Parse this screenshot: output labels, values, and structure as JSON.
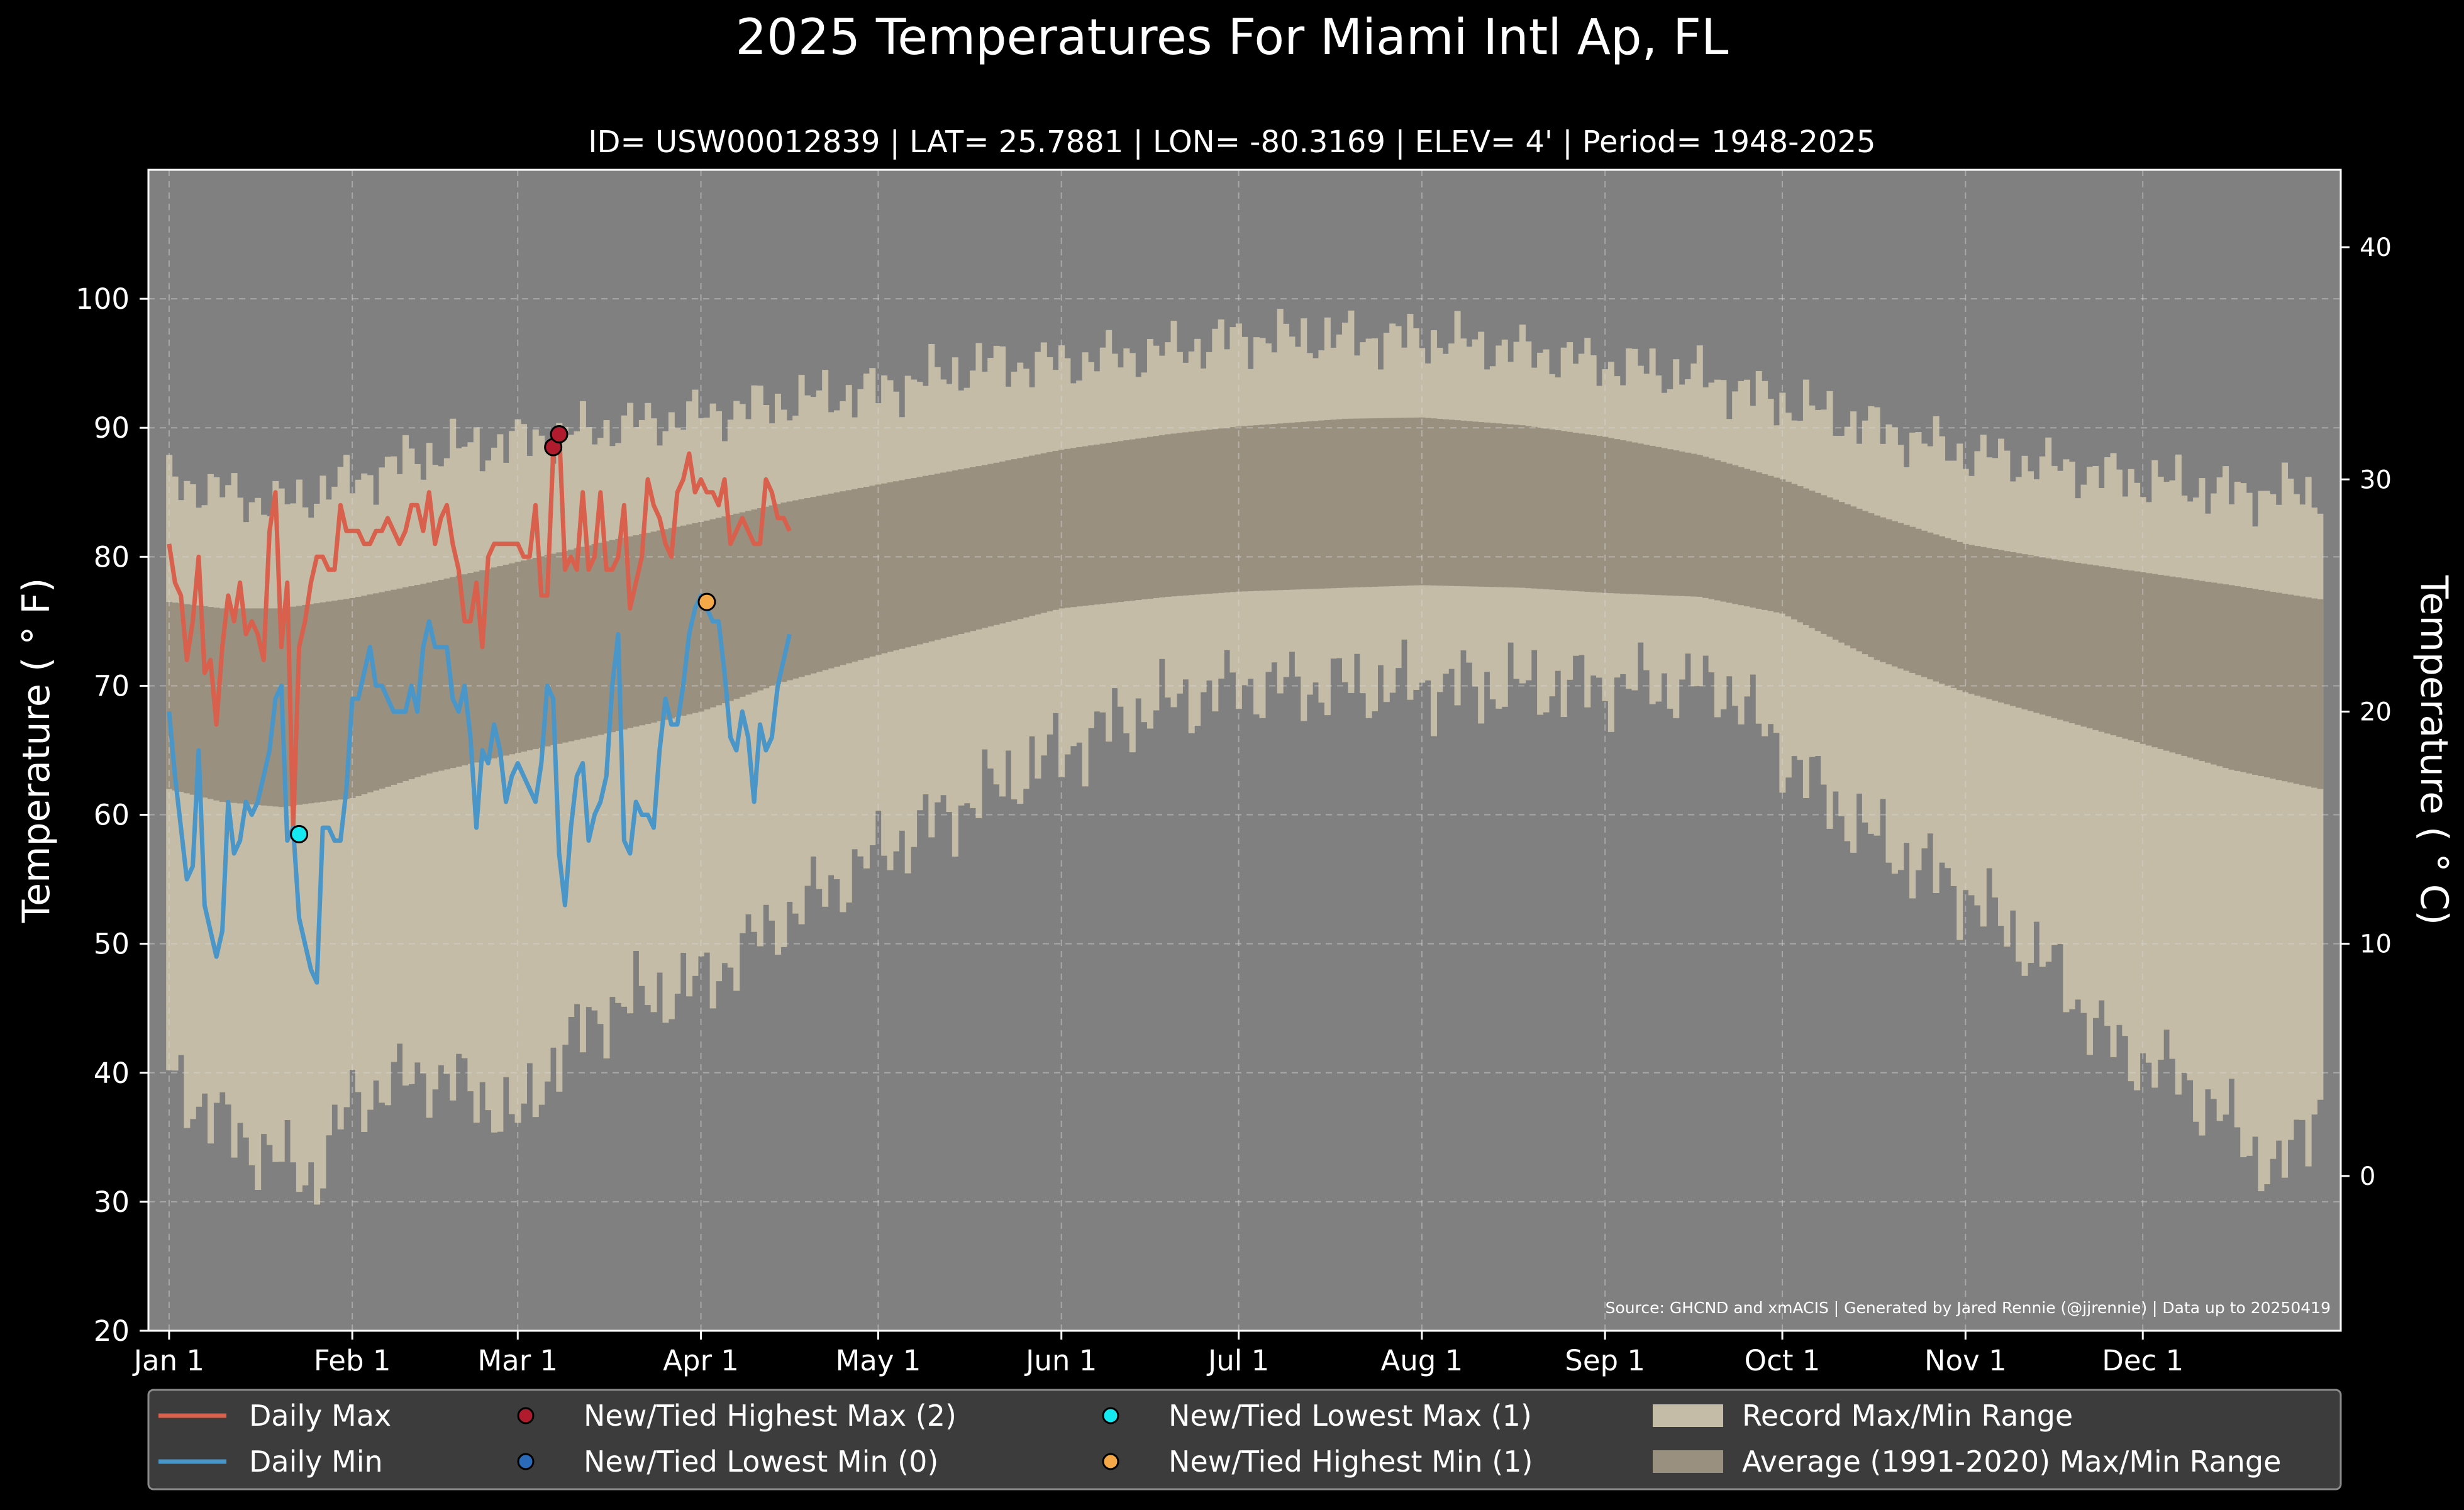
{
  "chart_data": {
    "type": "line",
    "title": "2025 Temperatures For Miami Intl Ap, FL",
    "subtitle": "ID= USW00012839 | LAT= 25.7881 | LON= -80.3169 | ELEV= 4' | Period= 1948-2025",
    "ylabel": "Temperature ($^\\circ$F)",
    "ylabel_display": "Temperature ( ° F)",
    "ylabel_right": "Temperature ( ° C)",
    "ylim": [
      20,
      110
    ],
    "y_ticks": [
      "20",
      "30",
      "40",
      "50",
      "60",
      "70",
      "80",
      "90",
      "100"
    ],
    "y_right_ticks": [
      "0",
      "10",
      "20",
      "30",
      "40"
    ],
    "x_ticks": [
      {
        "label": "Jan 1",
        "day": 1
      },
      {
        "label": "Feb 1",
        "day": 32
      },
      {
        "label": "Mar 1",
        "day": 60
      },
      {
        "label": "Apr 1",
        "day": 91
      },
      {
        "label": "May 1",
        "day": 121
      },
      {
        "label": "Jun 1",
        "day": 152
      },
      {
        "label": "Jul 1",
        "day": 182
      },
      {
        "label": "Aug 1",
        "day": 213
      },
      {
        "label": "Sep 1",
        "day": 244
      },
      {
        "label": "Oct 1",
        "day": 274
      },
      {
        "label": "Nov 1",
        "day": 305
      },
      {
        "label": "Dec 1",
        "day": 335
      }
    ],
    "grid": true,
    "legend_position": "bottom",
    "source_note": "Source: GHCND and xmACIS | Generated by Jared Rennie (@jjrennie) | Data up to 20250419",
    "colors": {
      "background": "#808080",
      "record_range": "#c4bca6",
      "average_range": "#9a9080",
      "daily_max": "#d9604c",
      "daily_min": "#4a96c8",
      "new_highest_max": "#b01c2e",
      "new_lowest_min": "#2a6ab8",
      "new_lowest_max": "#14e8f0",
      "new_highest_min": "#f4a848"
    },
    "legend": [
      {
        "label": "Daily Max",
        "kind": "line",
        "color": "#d9604c"
      },
      {
        "label": "Daily Min",
        "kind": "line",
        "color": "#4a96c8"
      },
      {
        "label": "New/Tied Highest Max (2)",
        "kind": "dot",
        "color": "#b01c2e"
      },
      {
        "label": "New/Tied Lowest Min (0)",
        "kind": "dot",
        "color": "#2a6ab8"
      },
      {
        "label": "New/Tied Lowest Max (1)",
        "kind": "dot",
        "color": "#14e8f0"
      },
      {
        "label": "New/Tied Highest Min (1)",
        "kind": "dot",
        "color": "#f4a848"
      },
      {
        "label": "Record Max/Min Range",
        "kind": "patch",
        "color": "#c4bca6"
      },
      {
        "label": "Average (1991-2020) Max/Min Range",
        "kind": "patch",
        "color": "#9a9080"
      }
    ],
    "record_max_anchors": [
      [
        1,
        86
      ],
      [
        10,
        85
      ],
      [
        20,
        84
      ],
      [
        32,
        86
      ],
      [
        45,
        88
      ],
      [
        60,
        89
      ],
      [
        75,
        90
      ],
      [
        91,
        91
      ],
      [
        105,
        92
      ],
      [
        121,
        93
      ],
      [
        140,
        95
      ],
      [
        152,
        95
      ],
      [
        170,
        96
      ],
      [
        182,
        97
      ],
      [
        200,
        97
      ],
      [
        213,
        97
      ],
      [
        230,
        96
      ],
      [
        244,
        95
      ],
      [
        260,
        94
      ],
      [
        274,
        92
      ],
      [
        290,
        90
      ],
      [
        305,
        88
      ],
      [
        320,
        87
      ],
      [
        335,
        86
      ],
      [
        350,
        85
      ],
      [
        365,
        85
      ]
    ],
    "record_min_anchors": [
      [
        1,
        40
      ],
      [
        10,
        36
      ],
      [
        20,
        33
      ],
      [
        26,
        32
      ],
      [
        32,
        38
      ],
      [
        45,
        40
      ],
      [
        55,
        38
      ],
      [
        60,
        36
      ],
      [
        66,
        41
      ],
      [
        75,
        45
      ],
      [
        91,
        47
      ],
      [
        105,
        52
      ],
      [
        121,
        57
      ],
      [
        140,
        62
      ],
      [
        152,
        65
      ],
      [
        165,
        68
      ],
      [
        182,
        70
      ],
      [
        213,
        70
      ],
      [
        244,
        70
      ],
      [
        265,
        70
      ],
      [
        270,
        67
      ],
      [
        280,
        62
      ],
      [
        290,
        58
      ],
      [
        305,
        54
      ],
      [
        320,
        48
      ],
      [
        330,
        42
      ],
      [
        340,
        40
      ],
      [
        350,
        36
      ],
      [
        358,
        32
      ],
      [
        365,
        38
      ]
    ],
    "avg_max_anchors": [
      [
        1,
        76.5
      ],
      [
        10,
        76
      ],
      [
        20,
        76
      ],
      [
        32,
        76.8
      ],
      [
        45,
        78
      ],
      [
        60,
        79.6
      ],
      [
        75,
        81.2
      ],
      [
        91,
        82.7
      ],
      [
        105,
        84.2
      ],
      [
        121,
        85.6
      ],
      [
        140,
        87.2
      ],
      [
        152,
        88.3
      ],
      [
        170,
        89.5
      ],
      [
        182,
        90.1
      ],
      [
        200,
        90.7
      ],
      [
        213,
        90.8
      ],
      [
        230,
        90.2
      ],
      [
        244,
        89.3
      ],
      [
        260,
        87.9
      ],
      [
        274,
        86
      ],
      [
        290,
        83.2
      ],
      [
        305,
        81
      ],
      [
        320,
        79.8
      ],
      [
        335,
        78.8
      ],
      [
        350,
        77.8
      ],
      [
        365,
        76.7
      ]
    ],
    "avg_min_anchors": [
      [
        1,
        62
      ],
      [
        10,
        61
      ],
      [
        20,
        60.6
      ],
      [
        32,
        61.3
      ],
      [
        45,
        63.2
      ],
      [
        60,
        64.8
      ],
      [
        75,
        66.3
      ],
      [
        91,
        68
      ],
      [
        105,
        70.3
      ],
      [
        121,
        72.4
      ],
      [
        140,
        74.6
      ],
      [
        152,
        76
      ],
      [
        170,
        76.9
      ],
      [
        182,
        77.3
      ],
      [
        200,
        77.6
      ],
      [
        213,
        77.8
      ],
      [
        230,
        77.6
      ],
      [
        244,
        77.2
      ],
      [
        260,
        76.9
      ],
      [
        274,
        75.6
      ],
      [
        290,
        72
      ],
      [
        305,
        69.5
      ],
      [
        320,
        67.5
      ],
      [
        335,
        65.5
      ],
      [
        350,
        63.5
      ],
      [
        365,
        62
      ]
    ],
    "series": [
      {
        "name": "Daily Max",
        "color": "#d9604c",
        "values": [
          81,
          78,
          77,
          72,
          75,
          80,
          71,
          72,
          67,
          73,
          77,
          75,
          78,
          74,
          75,
          74,
          72,
          82,
          85,
          73,
          78,
          59,
          73,
          75,
          78,
          80,
          80,
          79,
          79,
          84,
          82,
          82,
          82,
          81,
          81,
          82,
          82,
          83,
          82,
          81,
          82,
          84,
          84,
          82,
          85,
          81,
          83,
          84,
          81,
          79,
          75,
          75,
          78,
          73,
          80,
          81,
          81,
          81,
          81,
          81,
          80,
          80,
          84,
          77,
          77,
          88,
          90,
          79,
          80,
          79,
          85,
          79,
          80,
          85,
          79,
          79,
          80,
          84,
          76,
          78,
          80,
          86,
          84,
          83,
          81,
          80,
          85,
          86,
          88,
          85,
          86,
          85,
          85,
          84,
          86,
          81,
          82,
          83,
          82,
          81,
          81,
          86,
          85,
          83,
          83,
          82
        ]
      },
      {
        "name": "Daily Min",
        "color": "#4a96c8",
        "values": [
          68,
          63,
          59,
          55,
          56,
          65,
          53,
          51,
          49,
          51,
          61,
          57,
          58,
          61,
          60,
          61,
          63,
          65,
          69,
          70,
          58,
          59,
          52,
          50,
          48,
          47,
          59,
          59,
          58,
          58,
          62,
          69,
          69,
          71,
          73,
          70,
          70,
          69,
          68,
          68,
          68,
          70,
          68,
          73,
          75,
          73,
          73,
          73,
          69,
          68,
          70,
          66,
          59,
          65,
          64,
          67,
          65,
          61,
          63,
          64,
          63,
          62,
          61,
          64,
          70,
          69,
          57,
          53,
          59,
          63,
          64,
          58,
          60,
          61,
          63,
          70,
          74,
          58,
          57,
          61,
          60,
          60,
          59,
          65,
          69,
          67,
          67,
          70,
          74,
          76,
          77,
          76,
          75,
          75,
          71,
          66,
          65,
          68,
          66,
          61,
          67,
          65,
          66,
          70,
          72,
          74
        ]
      },
      {
        "name": "New/Tied Highest Max (2)",
        "color": "#b01c2e",
        "points": [
          [
            66,
            88.5
          ],
          [
            67,
            89.5
          ]
        ]
      },
      {
        "name": "New/Tied Lowest Max (1)",
        "color": "#14e8f0",
        "points": [
          [
            23,
            58.5
          ]
        ]
      },
      {
        "name": "New/Tied Highest Min (1)",
        "color": "#f4a848",
        "points": [
          [
            92,
            76.5
          ]
        ]
      }
    ]
  }
}
